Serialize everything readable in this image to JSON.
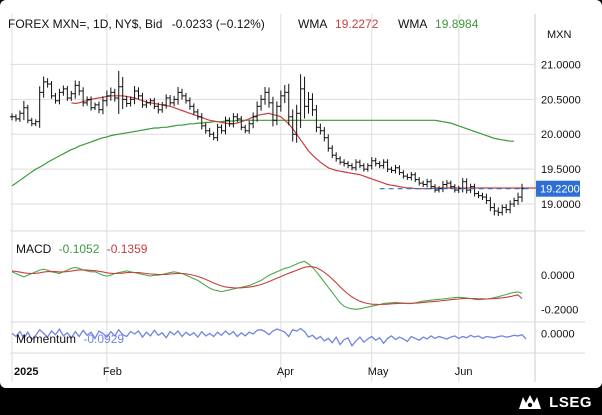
{
  "brand": {
    "name": "LSEG"
  },
  "colors": {
    "price": "#111111",
    "wma_short": "#c94040",
    "wma_long": "#3f9a3f",
    "macd": "#4ca84c",
    "signal": "#c94040",
    "momentum": "#6f84e6",
    "last_price": "#2d6fd6",
    "grid": "#dddddd"
  },
  "chart_data": [
    {
      "type": "line",
      "subtype": "ohlc-bars",
      "pane": "price",
      "title": "FOREX MXN=, 1D, NY$, Bid",
      "header": {
        "symbol": "FOREX MXN=, 1D, NY$, Bid",
        "change": "-0.0233 (−0.12%)",
        "wma1_label": "WMA",
        "wma1_value": "19.2272",
        "wma2_label": "WMA",
        "wma2_value": "19.8984"
      },
      "y_unit_label": "MXN",
      "ylim": [
        18.7,
        21.35
      ],
      "y_ticks": [
        {
          "value": 21.0,
          "label": "21.0000"
        },
        {
          "value": 20.5,
          "label": "20.5000"
        },
        {
          "value": 20.0,
          "label": "20.0000"
        },
        {
          "value": 19.5,
          "label": "19.5000"
        },
        {
          "value": 19.0,
          "label": "19.0000"
        }
      ],
      "last_price": {
        "value": 19.22,
        "label": "19.2200"
      },
      "x_ticks": [
        {
          "x": 0,
          "label": "2025"
        },
        {
          "x": 24,
          "label": "Feb"
        },
        {
          "x": 68,
          "label": "Apr"
        },
        {
          "x": 91,
          "label": "May"
        },
        {
          "x": 113,
          "label": "Jun"
        }
      ],
      "close": [
        20.25,
        20.22,
        20.3,
        20.38,
        20.2,
        20.15,
        20.18,
        20.6,
        20.75,
        20.72,
        20.55,
        20.48,
        20.6,
        20.65,
        20.52,
        20.58,
        20.7,
        20.62,
        20.45,
        20.5,
        20.38,
        20.42,
        20.35,
        20.48,
        20.55,
        20.6,
        20.52,
        20.68,
        20.5,
        20.44,
        20.5,
        20.62,
        20.55,
        20.42,
        20.45,
        20.48,
        20.4,
        20.35,
        20.42,
        20.52,
        20.45,
        20.5,
        20.6,
        20.55,
        20.48,
        20.4,
        20.32,
        20.25,
        20.12,
        20.05,
        20.0,
        19.95,
        20.1,
        20.05,
        20.2,
        20.15,
        20.25,
        20.22,
        20.1,
        20.05,
        20.15,
        20.25,
        20.4,
        20.5,
        20.6,
        20.45,
        20.2,
        20.4,
        20.55,
        20.6,
        20.25,
        20.0,
        20.3,
        20.65,
        20.4,
        20.5,
        20.35,
        20.1,
        20.05,
        19.95,
        19.8,
        19.7,
        19.65,
        19.6,
        19.58,
        19.55,
        19.52,
        19.6,
        19.55,
        19.5,
        19.55,
        19.62,
        19.58,
        19.55,
        19.6,
        19.5,
        19.48,
        19.52,
        19.45,
        19.4,
        19.38,
        19.42,
        19.35,
        19.3,
        19.28,
        19.32,
        19.25,
        19.2,
        19.22,
        19.28,
        19.3,
        19.25,
        19.2,
        19.22,
        19.32,
        19.2,
        19.25,
        19.15,
        19.12,
        19.1,
        19.05,
        18.95,
        18.9,
        18.88,
        18.95,
        18.92,
        19.0,
        19.05,
        19.1,
        19.22
      ],
      "bar_range": [
        0.14,
        0.1,
        0.12,
        0.28,
        0.12,
        0.1,
        0.1,
        0.25,
        0.22,
        0.15,
        0.12,
        0.12,
        0.15,
        0.14,
        0.12,
        0.12,
        0.2,
        0.18,
        0.15,
        0.12,
        0.12,
        0.1,
        0.14,
        0.18,
        0.22,
        0.2,
        0.15,
        0.65,
        0.4,
        0.14,
        0.12,
        0.2,
        0.15,
        0.12,
        0.12,
        0.1,
        0.12,
        0.15,
        0.12,
        0.15,
        0.12,
        0.14,
        0.22,
        0.15,
        0.12,
        0.14,
        0.12,
        0.12,
        0.15,
        0.12,
        0.12,
        0.1,
        0.14,
        0.12,
        0.15,
        0.12,
        0.15,
        0.14,
        0.12,
        0.1,
        0.12,
        0.18,
        0.2,
        0.18,
        0.22,
        0.2,
        0.25,
        0.2,
        0.22,
        0.3,
        0.35,
        0.3,
        0.35,
        0.6,
        0.5,
        0.3,
        0.25,
        0.2,
        0.15,
        0.15,
        0.14,
        0.12,
        0.12,
        0.1,
        0.12,
        0.1,
        0.1,
        0.12,
        0.1,
        0.1,
        0.1,
        0.15,
        0.12,
        0.1,
        0.12,
        0.12,
        0.1,
        0.12,
        0.1,
        0.1,
        0.1,
        0.12,
        0.1,
        0.1,
        0.1,
        0.12,
        0.1,
        0.1,
        0.1,
        0.14,
        0.12,
        0.1,
        0.1,
        0.12,
        0.15,
        0.14,
        0.12,
        0.12,
        0.1,
        0.12,
        0.14,
        0.15,
        0.18,
        0.15,
        0.12,
        0.14,
        0.15,
        0.12,
        0.18,
        0.2
      ],
      "series": [
        {
          "name": "WMA",
          "line": "short",
          "start_x": 15,
          "values": [
            20.45,
            20.44,
            20.45,
            20.47,
            20.48,
            20.5,
            20.51,
            20.52,
            20.53,
            20.54,
            20.55,
            20.55,
            20.55,
            20.55,
            20.54,
            20.53,
            20.52,
            20.5,
            20.48,
            20.46,
            20.45,
            20.44,
            20.43,
            20.42,
            20.41,
            20.4,
            20.38,
            20.36,
            20.34,
            20.32,
            20.3,
            20.28,
            20.26,
            20.24,
            20.22,
            20.2,
            20.19,
            20.18,
            20.17,
            20.16,
            20.15,
            20.15,
            20.16,
            20.18,
            20.2,
            20.22,
            20.25,
            20.27,
            20.28,
            20.29,
            20.3,
            20.28,
            20.27,
            20.25,
            20.2,
            20.15,
            20.08,
            20.0,
            19.92,
            19.84,
            19.76,
            19.7,
            19.65,
            19.6,
            19.56,
            19.52,
            19.5,
            19.48,
            19.47,
            19.46,
            19.45,
            19.44,
            19.43,
            19.42,
            19.4,
            19.38,
            19.36,
            19.34,
            19.32,
            19.3,
            19.28,
            19.27,
            19.26,
            19.25,
            19.24,
            19.23,
            19.23,
            19.22,
            19.22,
            19.22,
            19.22,
            19.22,
            19.23,
            19.23,
            19.23,
            19.23,
            19.23,
            19.23,
            19.23,
            19.23,
            19.23,
            19.23,
            19.23,
            19.23,
            19.23,
            19.23,
            19.23,
            19.23,
            19.23,
            19.23,
            19.23,
            19.23,
            19.23,
            19.23,
            19.23,
            19.23,
            19.23,
            19.23,
            19.23
          ]
        },
        {
          "name": "WMA",
          "line": "long",
          "start_x": 0,
          "values": [
            19.26,
            19.3,
            19.34,
            19.38,
            19.42,
            19.46,
            19.5,
            19.53,
            19.56,
            19.6,
            19.63,
            19.66,
            19.69,
            19.72,
            19.75,
            19.78,
            19.8,
            19.83,
            19.85,
            19.87,
            19.89,
            19.91,
            19.93,
            19.95,
            19.96,
            19.98,
            19.99,
            20.0,
            20.01,
            20.02,
            20.03,
            20.04,
            20.05,
            20.06,
            20.07,
            20.08,
            20.09,
            20.09,
            20.1,
            20.1,
            20.11,
            20.12,
            20.13,
            20.13,
            20.14,
            20.15,
            20.15,
            20.16,
            20.16,
            20.17,
            20.17,
            20.18,
            20.18,
            20.18,
            20.19,
            20.19,
            20.19,
            20.2,
            20.2,
            20.2,
            20.2,
            20.2,
            20.2,
            20.2,
            20.2,
            20.2,
            20.2,
            20.2,
            20.2,
            20.2,
            20.2,
            20.2,
            20.2,
            20.2,
            20.2,
            20.2,
            20.2,
            20.2,
            20.2,
            20.2,
            20.2,
            20.2,
            20.2,
            20.2,
            20.2,
            20.2,
            20.2,
            20.2,
            20.2,
            20.2,
            20.2,
            20.2,
            20.2,
            20.2,
            20.2,
            20.2,
            20.2,
            20.2,
            20.2,
            20.2,
            20.2,
            20.2,
            20.2,
            20.2,
            20.2,
            20.2,
            20.2,
            20.2,
            20.19,
            20.18,
            20.17,
            20.16,
            20.14,
            20.12,
            20.1,
            20.08,
            20.06,
            20.04,
            20.02,
            20.0,
            19.98,
            19.96,
            19.94,
            19.93,
            19.92,
            19.91,
            19.9,
            19.9
          ]
        }
      ]
    },
    {
      "type": "line",
      "pane": "macd",
      "label": "MACD",
      "macd_value": "-0.1052",
      "signal_value": "-0.1359",
      "ylim": [
        -0.26,
        0.1
      ],
      "y_ticks": [
        {
          "value": 0.0,
          "label": "0.0000"
        },
        {
          "value": -0.2,
          "label": "-0.2000"
        }
      ],
      "series": [
        {
          "name": "MACD",
          "values": [
            0.02,
            0.01,
            0.0,
            -0.01,
            0.0,
            0.01,
            0.02,
            0.03,
            0.035,
            0.03,
            0.02,
            0.015,
            0.01,
            0.02,
            0.03,
            0.04,
            0.045,
            0.04,
            0.03,
            0.025,
            0.02,
            0.02,
            0.01,
            0.0,
            -0.005,
            0.0,
            0.01,
            0.015,
            0.02,
            0.025,
            0.02,
            0.015,
            0.01,
            0.005,
            0.0,
            -0.005,
            0.0,
            0.0,
            0.005,
            0.01,
            0.015,
            0.02,
            0.015,
            0.01,
            0.0,
            -0.01,
            -0.02,
            -0.03,
            -0.045,
            -0.06,
            -0.075,
            -0.085,
            -0.09,
            -0.095,
            -0.09,
            -0.085,
            -0.08,
            -0.075,
            -0.07,
            -0.065,
            -0.06,
            -0.05,
            -0.04,
            -0.03,
            -0.015,
            0.0,
            0.01,
            0.02,
            0.03,
            0.04,
            0.045,
            0.055,
            0.065,
            0.075,
            0.08,
            0.065,
            0.045,
            0.02,
            -0.01,
            -0.04,
            -0.07,
            -0.1,
            -0.13,
            -0.16,
            -0.18,
            -0.19,
            -0.195,
            -0.198,
            -0.195,
            -0.19,
            -0.185,
            -0.18,
            -0.175,
            -0.17,
            -0.165,
            -0.162,
            -0.16,
            -0.158,
            -0.16,
            -0.162,
            -0.165,
            -0.165,
            -0.16,
            -0.155,
            -0.15,
            -0.148,
            -0.145,
            -0.142,
            -0.14,
            -0.138,
            -0.135,
            -0.132,
            -0.13,
            -0.128,
            -0.13,
            -0.132,
            -0.135,
            -0.14,
            -0.142,
            -0.14,
            -0.138,
            -0.135,
            -0.13,
            -0.125,
            -0.118,
            -0.112,
            -0.105,
            -0.1,
            -0.097,
            -0.105
          ]
        },
        {
          "name": "Signal",
          "values": [
            0.025,
            0.022,
            0.018,
            0.014,
            0.011,
            0.01,
            0.011,
            0.014,
            0.018,
            0.021,
            0.022,
            0.021,
            0.019,
            0.019,
            0.021,
            0.024,
            0.028,
            0.031,
            0.031,
            0.03,
            0.028,
            0.026,
            0.023,
            0.019,
            0.014,
            0.011,
            0.01,
            0.011,
            0.012,
            0.015,
            0.016,
            0.016,
            0.015,
            0.013,
            0.01,
            0.007,
            0.006,
            0.004,
            0.004,
            0.005,
            0.007,
            0.009,
            0.01,
            0.01,
            0.008,
            0.004,
            -0.001,
            -0.007,
            -0.015,
            -0.024,
            -0.034,
            -0.045,
            -0.054,
            -0.062,
            -0.068,
            -0.071,
            -0.073,
            -0.074,
            -0.073,
            -0.071,
            -0.069,
            -0.065,
            -0.06,
            -0.054,
            -0.046,
            -0.037,
            -0.027,
            -0.018,
            -0.008,
            0.002,
            0.011,
            0.02,
            0.029,
            0.038,
            0.046,
            0.05,
            0.049,
            0.043,
            0.032,
            0.017,
            -0.001,
            -0.022,
            -0.044,
            -0.067,
            -0.089,
            -0.109,
            -0.126,
            -0.14,
            -0.151,
            -0.159,
            -0.164,
            -0.168,
            -0.169,
            -0.17,
            -0.169,
            -0.168,
            -0.166,
            -0.165,
            -0.164,
            -0.163,
            -0.163,
            -0.163,
            -0.162,
            -0.161,
            -0.158,
            -0.156,
            -0.154,
            -0.152,
            -0.15,
            -0.147,
            -0.145,
            -0.142,
            -0.14,
            -0.138,
            -0.136,
            -0.135,
            -0.135,
            -0.136,
            -0.137,
            -0.137,
            -0.138,
            -0.137,
            -0.136,
            -0.134,
            -0.131,
            -0.128,
            -0.124,
            -0.119,
            -0.114,
            -0.136
          ]
        }
      ]
    },
    {
      "type": "line",
      "pane": "momentum",
      "label": "Momentum",
      "value_label": "-0.0929",
      "ylim": [
        -0.3,
        0.12
      ],
      "y_ticks": [
        {
          "value": 0.0,
          "label": "0.0000"
        }
      ],
      "series": [
        {
          "name": "Momentum",
          "values": [
            0.0,
            -0.05,
            0.03,
            -0.08,
            0.02,
            -0.1,
            -0.03,
            0.06,
            0.0,
            -0.06,
            0.04,
            -0.02,
            0.07,
            -0.04,
            0.01,
            -0.07,
            0.03,
            -0.05,
            0.05,
            -0.03,
            0.02,
            -0.08,
            0.04,
            0.0,
            -0.06,
            0.03,
            -0.04,
            0.06,
            -0.02,
            -0.05,
            0.03,
            -0.01,
            0.04,
            -0.06,
            0.02,
            -0.04,
            0.05,
            -0.03,
            0.01,
            -0.07,
            0.03,
            -0.02,
            0.04,
            -0.05,
            0.02,
            -0.03,
            0.01,
            -0.06,
            0.03,
            -0.04,
            0.0,
            -0.05,
            0.02,
            -0.03,
            0.04,
            -0.02,
            0.03,
            -0.05,
            0.01,
            -0.04,
            0.02,
            -0.01,
            0.05,
            0.06,
            0.03,
            -0.02,
            0.04,
            0.07,
            0.05,
            0.02,
            -0.05,
            0.06,
            0.04,
            0.08,
            0.03,
            -0.06,
            -0.03,
            -0.09,
            -0.05,
            -0.12,
            -0.08,
            -0.15,
            -0.06,
            -0.18,
            -0.1,
            -0.07,
            -0.2,
            -0.12,
            -0.06,
            -0.14,
            -0.09,
            -0.05,
            -0.11,
            -0.07,
            -0.16,
            -0.08,
            -0.04,
            -0.1,
            -0.06,
            -0.09,
            -0.13,
            -0.05,
            -0.08,
            -0.11,
            -0.06,
            -0.09,
            -0.04,
            -0.08,
            -0.05,
            -0.07,
            -0.09,
            -0.06,
            -0.04,
            -0.08,
            -0.05,
            -0.07,
            -0.03,
            -0.06,
            -0.04,
            -0.08,
            -0.05,
            -0.06,
            -0.07,
            -0.05,
            -0.04,
            -0.06,
            -0.05,
            -0.03,
            -0.04,
            -0.02,
            -0.09
          ]
        }
      ]
    }
  ]
}
